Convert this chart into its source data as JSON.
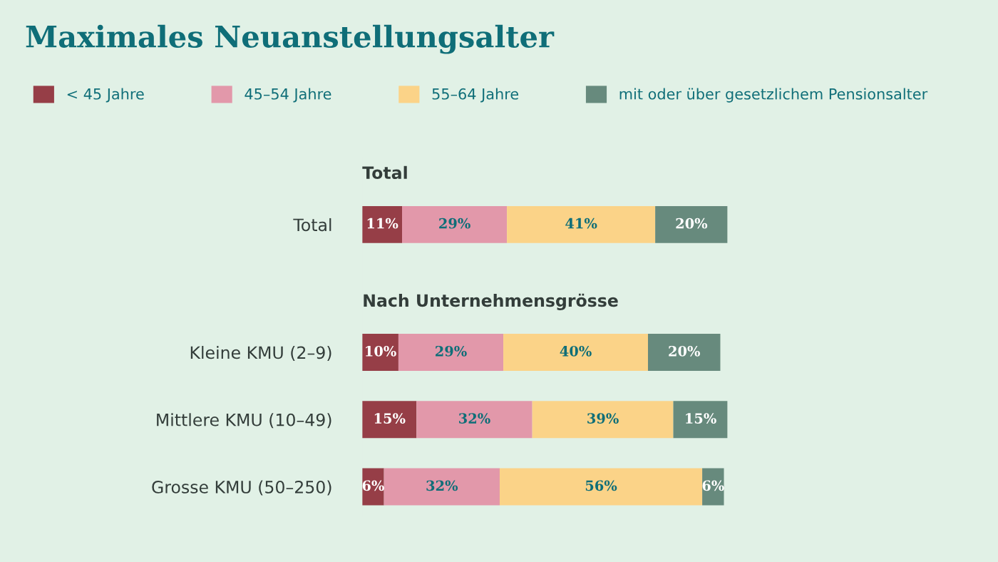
{
  "chart_data": {
    "type": "bar",
    "orientation": "horizontal",
    "stacked": true,
    "title": "Maximales Neuanstellungsalter",
    "categories": [
      "Total",
      "Kleine KMU (2–9)",
      "Mittlere KMU (10–49)",
      "Grosse KMU (50–250)"
    ],
    "series": [
      {
        "name": "< 45 Jahre",
        "color": "#963e47",
        "values": [
          11,
          10,
          15,
          6
        ],
        "value_labels": [
          "11%",
          "10%",
          "15%",
          "6%"
        ]
      },
      {
        "name": "45–54 Jahre",
        "color": "#e298aa",
        "values": [
          29,
          29,
          32,
          32
        ],
        "value_labels": [
          "29%",
          "29%",
          "32%",
          "32%"
        ]
      },
      {
        "name": "55–64 Jahre",
        "color": "#fbd388",
        "values": [
          41,
          40,
          39,
          56
        ],
        "value_labels": [
          "41%",
          "40%",
          "39%",
          "56%"
        ]
      },
      {
        "name": "mit oder über gesetzlichem Pensionsalter",
        "color": "#678a7d",
        "values": [
          20,
          20,
          15,
          6
        ],
        "value_labels": [
          "20%",
          "20%",
          "15%",
          "6%"
        ]
      }
    ],
    "annotations": [
      "Total",
      "Nach Unternehmensgrösse"
    ],
    "legend": "top",
    "tick_labels": "y",
    "grid": false
  }
}
